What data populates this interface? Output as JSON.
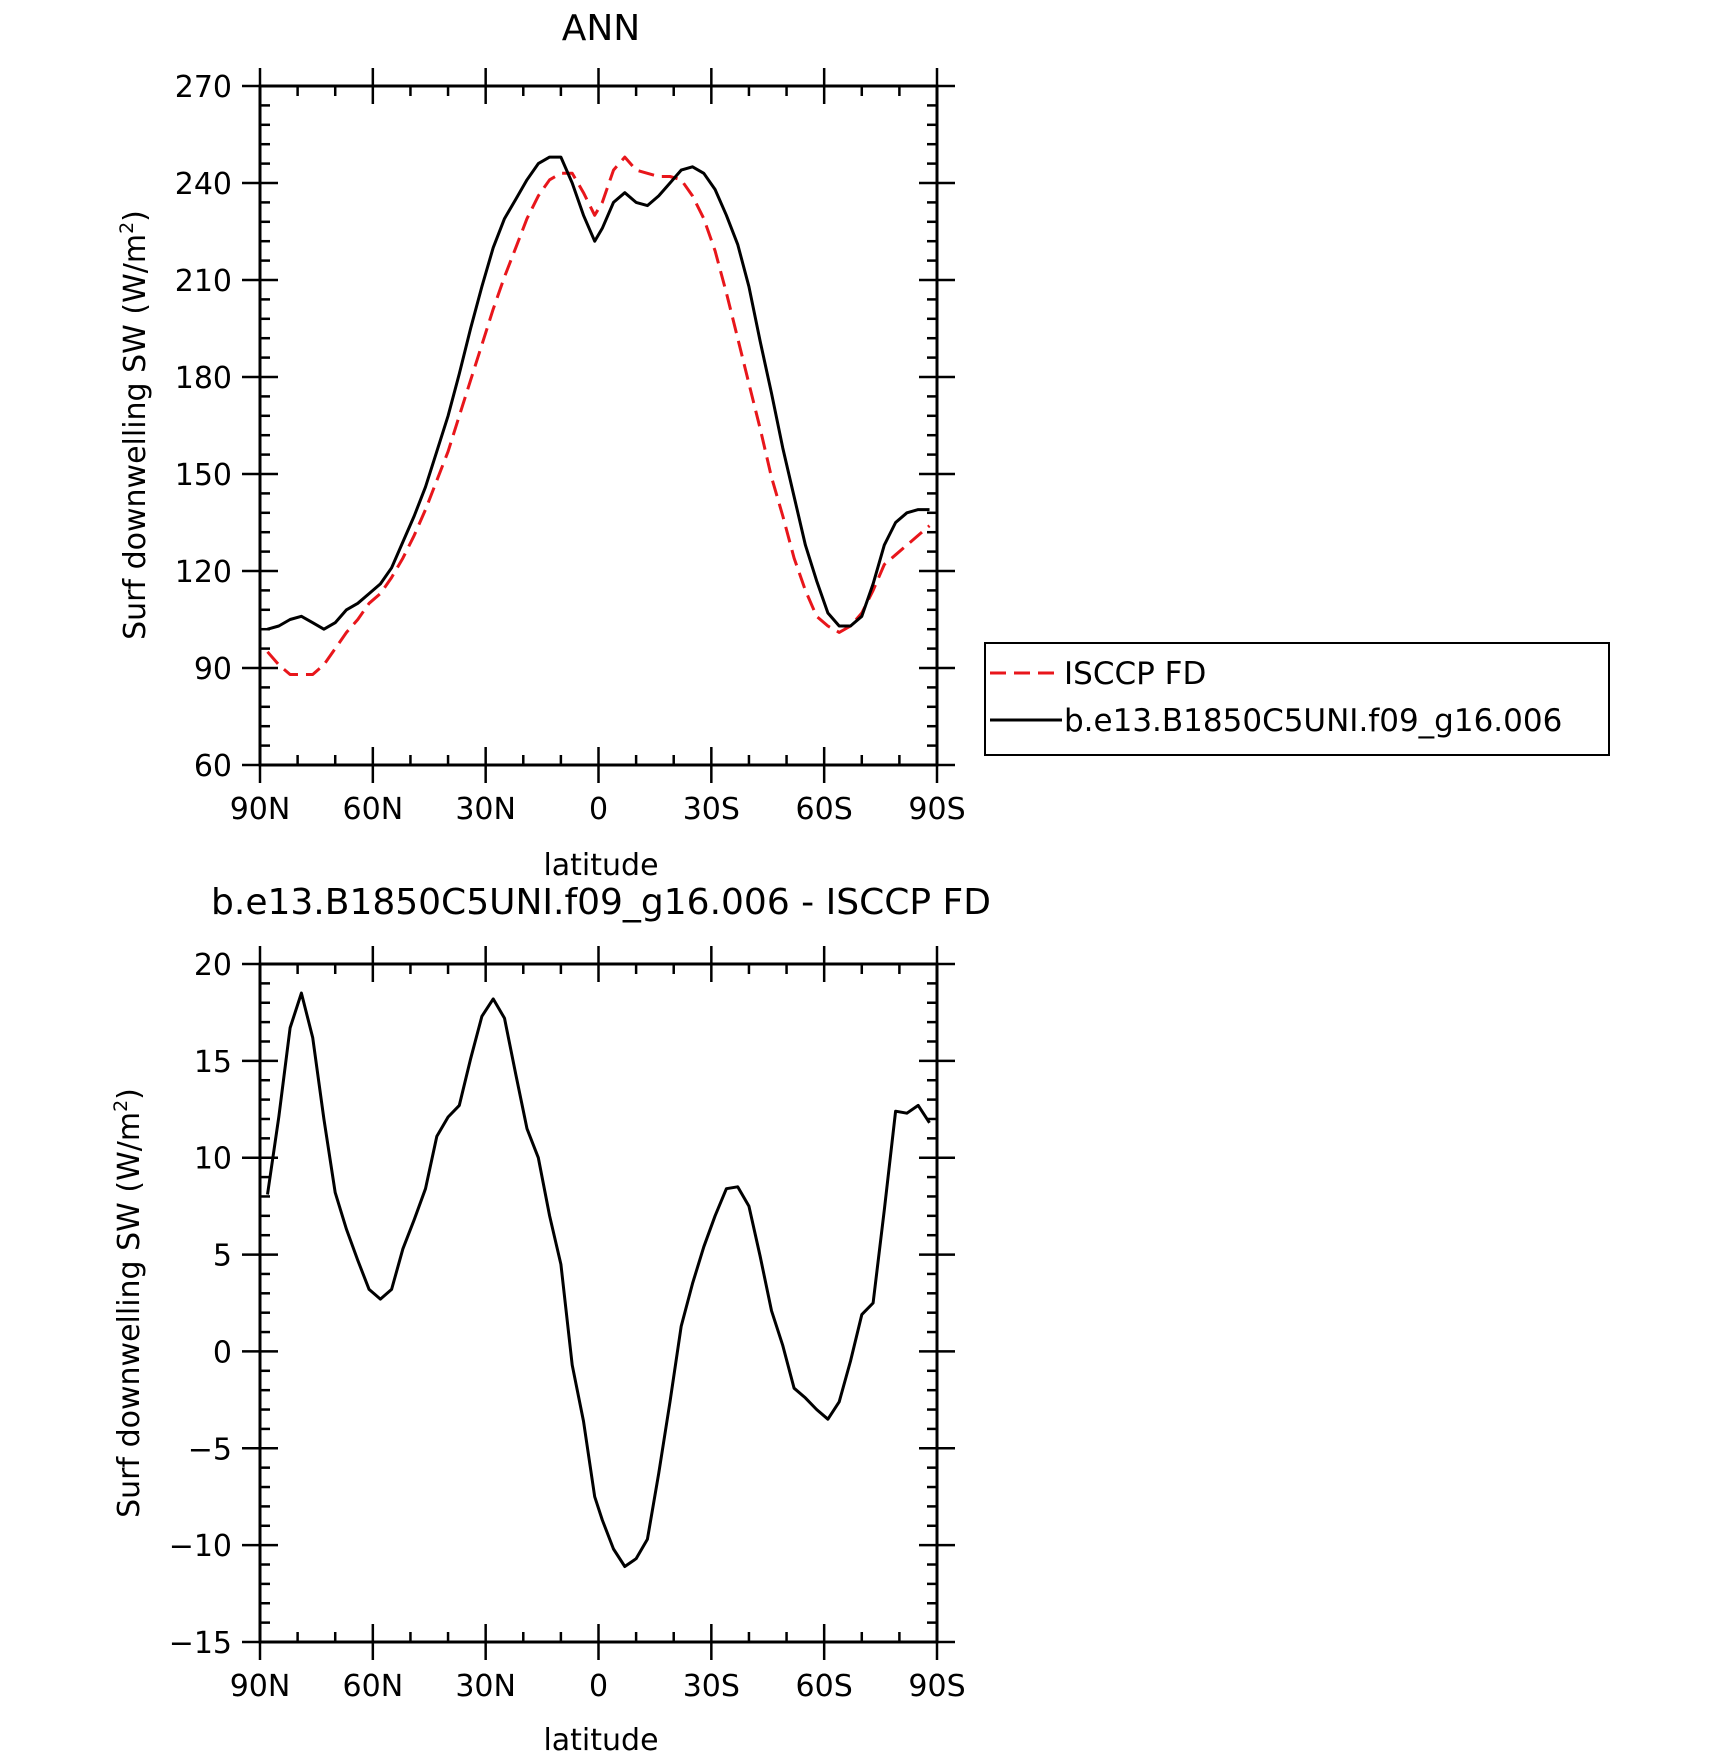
{
  "chart_data": [
    {
      "type": "line",
      "title": "ANN",
      "xlabel": "latitude",
      "ylabel": "Surf downwelling SW (W/m",
      "ylabel_sup": "2",
      "ylabel_end": ")",
      "xlim": [
        90,
        -90
      ],
      "ylim": [
        60,
        270
      ],
      "xticks": [
        90,
        60,
        30,
        0,
        -30,
        -60,
        -90
      ],
      "xtick_labels": [
        "90N",
        "60N",
        "30N",
        "0",
        "30S",
        "60S",
        "90S"
      ],
      "yticks": [
        60,
        90,
        120,
        150,
        180,
        210,
        240,
        270
      ],
      "ytick_labels": [
        "60",
        "90",
        "120",
        "150",
        "180",
        "210",
        "240",
        "270"
      ],
      "grid": false,
      "legend_position": "right",
      "series": [
        {
          "name": "ISCCP FD",
          "color": "#e8161b",
          "dash": "dashed",
          "x": [
            88,
            85,
            82,
            79,
            76,
            73,
            70,
            67,
            64,
            61,
            58,
            55,
            52,
            49,
            46,
            43,
            40,
            37,
            34,
            31,
            28,
            25,
            22,
            19,
            16,
            13,
            10,
            7,
            4,
            1,
            -1,
            -4,
            -7,
            -10,
            -13,
            -16,
            -19,
            -22,
            -25,
            -28,
            -31,
            -34,
            -37,
            -40,
            -43,
            -46,
            -49,
            -52,
            -55,
            -58,
            -61,
            -64,
            -67,
            -70,
            -73,
            -76,
            -79,
            -82,
            -85,
            -88
          ],
          "y": [
            95,
            91,
            88,
            88,
            88,
            91,
            96,
            101,
            105,
            110,
            113,
            118,
            124,
            131,
            139,
            148,
            157,
            168,
            179,
            190,
            201,
            211,
            220,
            229,
            236,
            241,
            243,
            243,
            237,
            230,
            234,
            244,
            248,
            244,
            243,
            242,
            242,
            241,
            236,
            229,
            219,
            206,
            192,
            178,
            164,
            149,
            137,
            124,
            114,
            106,
            103,
            101,
            103,
            107,
            114,
            122,
            125,
            128,
            131,
            134
          ]
        },
        {
          "name": "b.e13.B1850C5UNI.f09_g16.006",
          "color": "#000000",
          "dash": "solid",
          "x": [
            88,
            85,
            82,
            79,
            76,
            73,
            70,
            67,
            64,
            61,
            58,
            55,
            52,
            49,
            46,
            43,
            40,
            37,
            34,
            31,
            28,
            25,
            22,
            19,
            16,
            13,
            10,
            7,
            4,
            1,
            -1,
            -4,
            -7,
            -10,
            -13,
            -16,
            -19,
            -22,
            -25,
            -28,
            -31,
            -34,
            -37,
            -40,
            -43,
            -46,
            -49,
            -52,
            -55,
            -58,
            -61,
            -64,
            -67,
            -70,
            -73,
            -76,
            -79,
            -82,
            -85,
            -88
          ],
          "y": [
            102,
            103,
            105,
            106,
            104,
            102,
            104,
            108,
            110,
            113,
            116,
            121,
            129,
            137,
            146,
            157,
            168,
            181,
            195,
            208,
            220,
            229,
            235,
            241,
            246,
            248,
            248,
            240,
            230,
            222,
            226,
            234,
            237,
            234,
            233,
            236,
            240,
            244,
            245,
            243,
            238,
            230,
            221,
            208,
            191,
            175,
            158,
            143,
            128,
            117,
            107,
            103,
            103,
            106,
            116,
            128,
            135,
            138,
            139,
            139
          ]
        }
      ]
    },
    {
      "type": "line",
      "title": "b.e13.B1850C5UNI.f09_g16.006 - ISCCP FD",
      "xlabel": "latitude",
      "ylabel": "Surf downwelling SW (W/m",
      "ylabel_sup": "2",
      "ylabel_end": ")",
      "xlim": [
        90,
        -90
      ],
      "ylim": [
        -15,
        20
      ],
      "xticks": [
        90,
        60,
        30,
        0,
        -30,
        -60,
        -90
      ],
      "xtick_labels": [
        "90N",
        "60N",
        "30N",
        "0",
        "30S",
        "60S",
        "90S"
      ],
      "yticks": [
        -15,
        -10,
        -5,
        0,
        5,
        10,
        15,
        20
      ],
      "ytick_labels": [
        "−15",
        "−10",
        "−5",
        "0",
        "5",
        "10",
        "15",
        "20"
      ],
      "grid": false,
      "series": [
        {
          "color": "#000000",
          "dash": "solid",
          "x": [
            88,
            85,
            82,
            79,
            76,
            73,
            70,
            67,
            64,
            61,
            58,
            55,
            52,
            49,
            46,
            43,
            40,
            37,
            34,
            31,
            28,
            25,
            22,
            19,
            16,
            13,
            10,
            7,
            4,
            1,
            -1,
            -4,
            -7,
            -10,
            -13,
            -16,
            -19,
            -22,
            -25,
            -28,
            -31,
            -34,
            -37,
            -40,
            -43,
            -46,
            -49,
            -52,
            -55,
            -58,
            -61,
            -64,
            -67,
            -70,
            -73,
            -76,
            -79,
            -82,
            -85,
            -88
          ],
          "y": [
            8.1,
            12.1,
            16.7,
            18.5,
            16.2,
            12.0,
            8.2,
            6.3,
            4.7,
            3.2,
            2.7,
            3.2,
            5.3,
            6.8,
            8.4,
            11.1,
            12.1,
            12.7,
            15.1,
            17.3,
            18.2,
            17.2,
            14.3,
            11.5,
            10.0,
            7.0,
            4.5,
            -0.7,
            -3.6,
            -7.5,
            -8.7,
            -10.2,
            -11.1,
            -10.7,
            -9.7,
            -6.3,
            -2.6,
            1.3,
            3.5,
            5.4,
            7.0,
            8.4,
            8.5,
            7.5,
            4.9,
            2.1,
            0.3,
            -1.9,
            -2.4,
            -3.0,
            -3.5,
            -2.6,
            -0.5,
            1.9,
            2.5,
            7.3,
            12.4,
            12.3,
            12.7,
            11.8
          ]
        }
      ]
    }
  ],
  "legend": {
    "entries": [
      "ISCCP FD",
      "b.e13.B1850C5UNI.f09_g16.006"
    ]
  }
}
